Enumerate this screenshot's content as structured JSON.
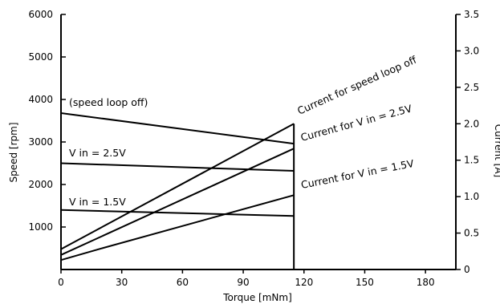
{
  "chart_data": {
    "type": "line",
    "xlabel": "Torque [mNm]",
    "ylabel_left": "Speed [rpm]",
    "ylabel_right": "Current [A]",
    "xlim": [
      0,
      195
    ],
    "ylim_left": [
      0,
      6000
    ],
    "ylim_right": [
      0,
      3.5
    ],
    "x_ticks": [
      0,
      30,
      60,
      90,
      120,
      150,
      180
    ],
    "y_left_ticks": [
      1000,
      2000,
      3000,
      4000,
      5000,
      6000
    ],
    "y_right_ticks": [
      0,
      0.5,
      1.0,
      1.5,
      2.0,
      2.5,
      3.0,
      3.5
    ],
    "y_right_tick_labels": [
      "0",
      "0.5",
      "1.0",
      "1.5",
      "2.0",
      "2.5",
      "3.0",
      "3.5"
    ],
    "grid": false,
    "series": [
      {
        "name": "(speed loop off)",
        "axis": "left",
        "x": [
          0,
          115
        ],
        "y": [
          3680,
          2960
        ]
      },
      {
        "name": "V in = 2.5V",
        "axis": "left",
        "x": [
          0,
          115
        ],
        "y": [
          2500,
          2320
        ]
      },
      {
        "name": "V in = 1.5V",
        "axis": "left",
        "x": [
          0,
          115
        ],
        "y": [
          1400,
          1260
        ]
      },
      {
        "name": "Current for speed loop off",
        "axis": "right",
        "x": [
          0,
          115
        ],
        "y": [
          0.28,
          2.0
        ]
      },
      {
        "name": "Current for V in = 2.5V",
        "axis": "right",
        "x": [
          0,
          115
        ],
        "y": [
          0.2,
          1.66
        ]
      },
      {
        "name": "Current for V in = 1.5V",
        "axis": "right",
        "x": [
          0,
          20,
          115
        ],
        "y": [
          0.13,
          0.29,
          1.02
        ]
      }
    ],
    "vertical_line": {
      "x": 115,
      "y_left_range": [
        0,
        3680
      ]
    }
  }
}
